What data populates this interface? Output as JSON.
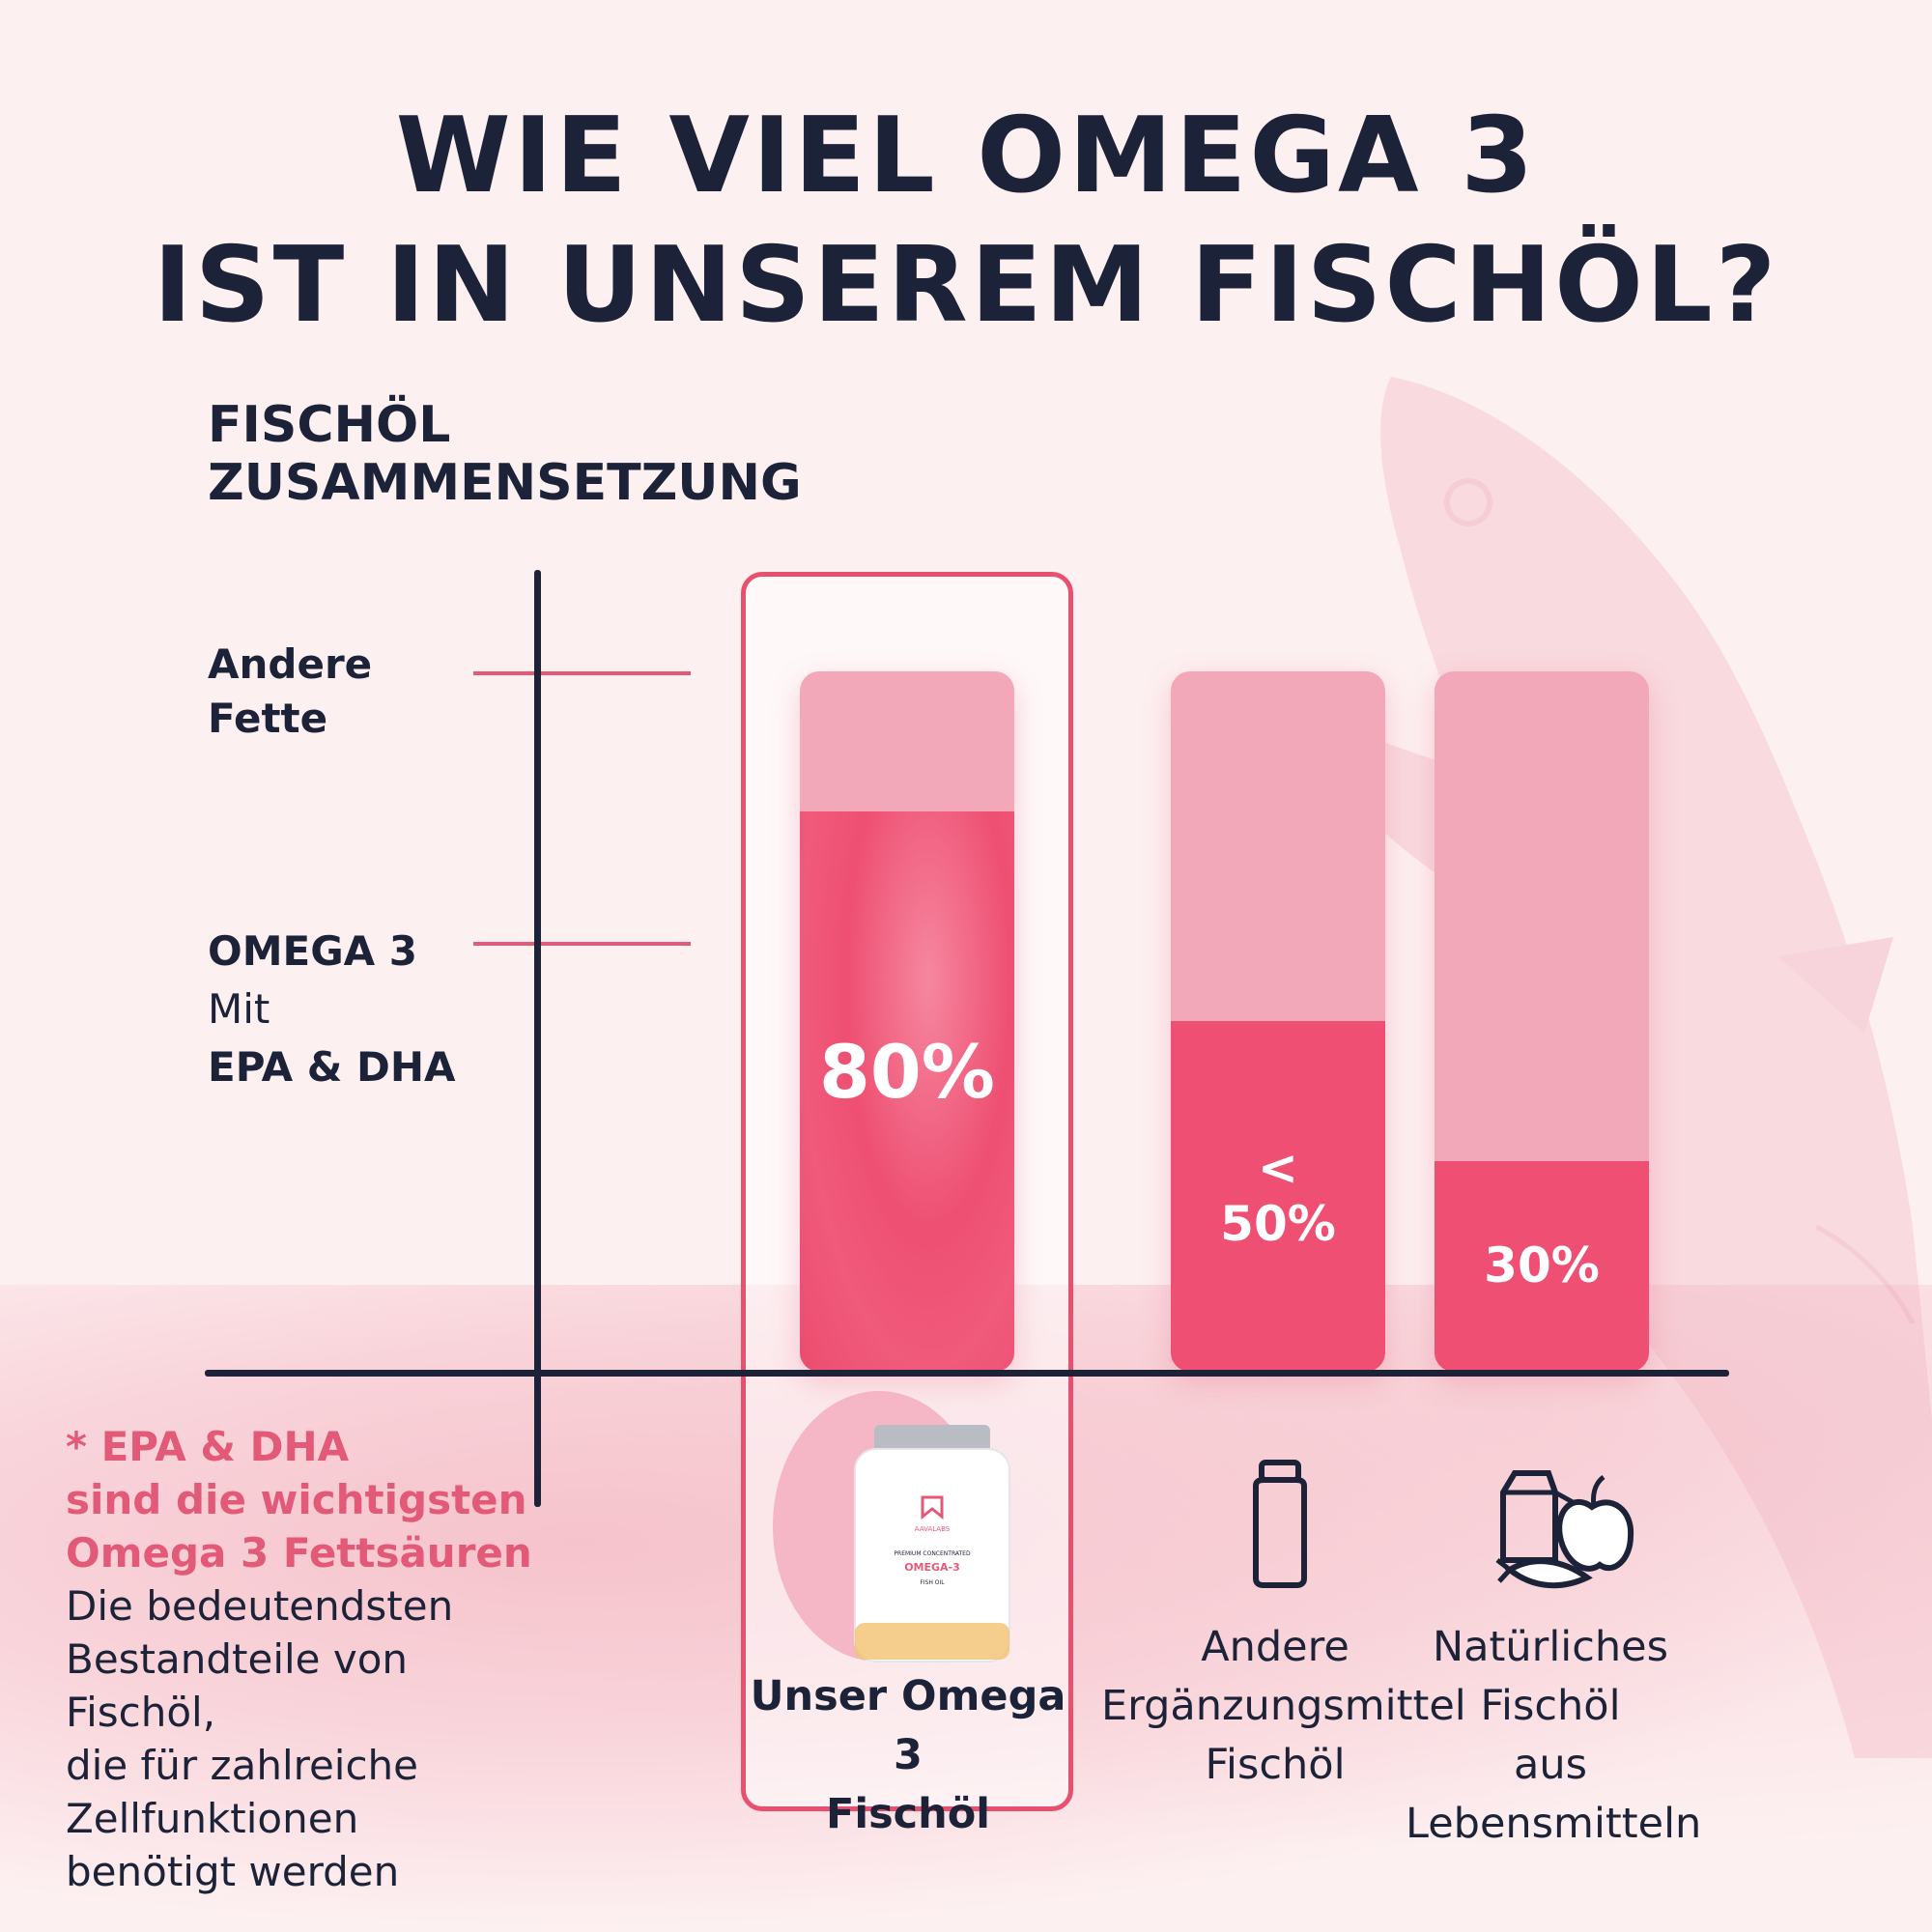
{
  "title": {
    "line1": "WIE VIEL OMEGA 3",
    "line2": "IST IN UNSEREM FISCHÖL?"
  },
  "subtitle": {
    "line1": "FISCHÖL",
    "line2": "ZUSAMMENSETZUNG"
  },
  "axis_labels": {
    "other_fats": {
      "line1": "Andere",
      "line2": "Fette"
    },
    "omega": {
      "line1": "OMEGA 3",
      "line2": "Mit",
      "line3": "EPA & DHA"
    }
  },
  "chart_data": {
    "type": "bar",
    "stacked": true,
    "categories": [
      "Unser Omega 3 Fischöl",
      "Andere Ergänzungsmittel Fischöl",
      "Natürliches Fischöl aus Lebensmitteln"
    ],
    "series": [
      {
        "name": "OMEGA 3 Mit EPA & DHA",
        "values": [
          80,
          50,
          30
        ],
        "color": "#ee4f72"
      },
      {
        "name": "Andere Fette",
        "values": [
          20,
          50,
          70
        ],
        "color": "#f2a8b9"
      }
    ],
    "data_labels": [
      {
        "prefix": "",
        "value": "80%"
      },
      {
        "prefix": "<",
        "value": "50%"
      },
      {
        "prefix": "",
        "value": "30%"
      }
    ],
    "ylim": [
      0,
      100
    ],
    "highlighted_category": 0
  },
  "categories_display": [
    {
      "lines": [
        "Unser Omega 3",
        "Fischöl"
      ]
    },
    {
      "lines": [
        "Andere",
        "Ergänzungsmittel",
        "Fischöl"
      ]
    },
    {
      "lines": [
        "Natürliches",
        "Fischöl",
        "aus",
        "Lebensmitteln"
      ]
    }
  ],
  "footnote": {
    "h1": "* EPA & DHA",
    "h2": "sind die wichtigsten",
    "h3": "Omega 3 Fettsäuren",
    "b1": "Die bedeutendsten",
    "b2": "Bestandteile von",
    "b3": "Fischöl,",
    "b4": "die für zahlreiche",
    "b5": "Zellfunktionen",
    "b6": "benötigt werden"
  },
  "product": {
    "brand": "AAVALABS",
    "line1": "PREMIUM CONCENTRATED",
    "line2": "OMEGA-3",
    "line3": "FISH OIL"
  },
  "icons": {
    "bottle": "supplement-bottle-icon",
    "food": "milk-apple-carrot-icon"
  },
  "colors": {
    "navy": "#1c2237",
    "accent": "#e8506f",
    "omega_fill": "#ee4f72",
    "other_fill": "#f2a8b9",
    "background": "#fdf0f1"
  }
}
